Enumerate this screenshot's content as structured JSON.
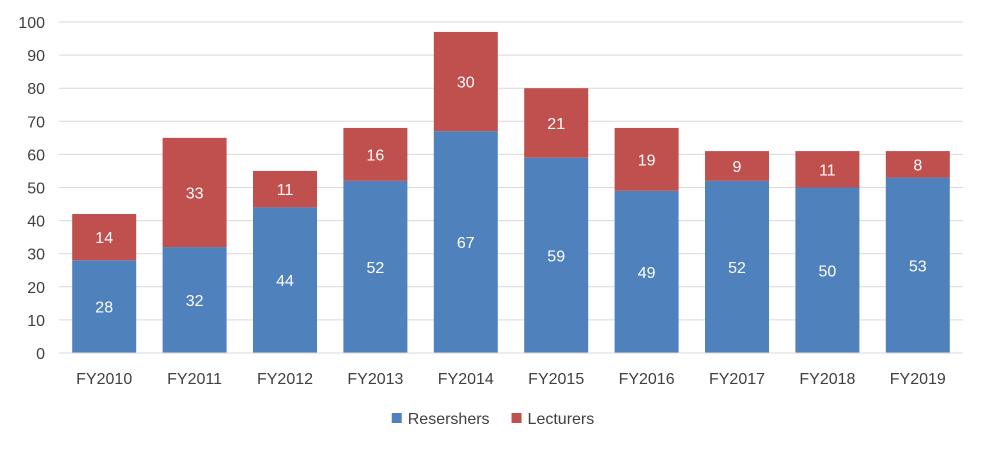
{
  "chart_data": {
    "type": "bar",
    "stacked": true,
    "title": "",
    "xlabel": "",
    "ylabel": "",
    "categories": [
      "FY2010",
      "FY2011",
      "FY2012",
      "FY2013",
      "FY2014",
      "FY2015",
      "FY2016",
      "FY2017",
      "FY2018",
      "FY2019"
    ],
    "series": [
      {
        "name": "Resershers",
        "color": "#4f81bd",
        "values": [
          28,
          32,
          44,
          52,
          67,
          59,
          49,
          52,
          50,
          53
        ]
      },
      {
        "name": "Lecturers",
        "color": "#c0504d",
        "values": [
          14,
          33,
          11,
          16,
          30,
          21,
          19,
          9,
          11,
          8
        ]
      }
    ],
    "ylim": [
      0,
      100
    ],
    "yticks": [
      0,
      10,
      20,
      30,
      40,
      50,
      60,
      70,
      80,
      90,
      100
    ],
    "grid": true,
    "data_labels": true,
    "legend_position": "bottom"
  }
}
